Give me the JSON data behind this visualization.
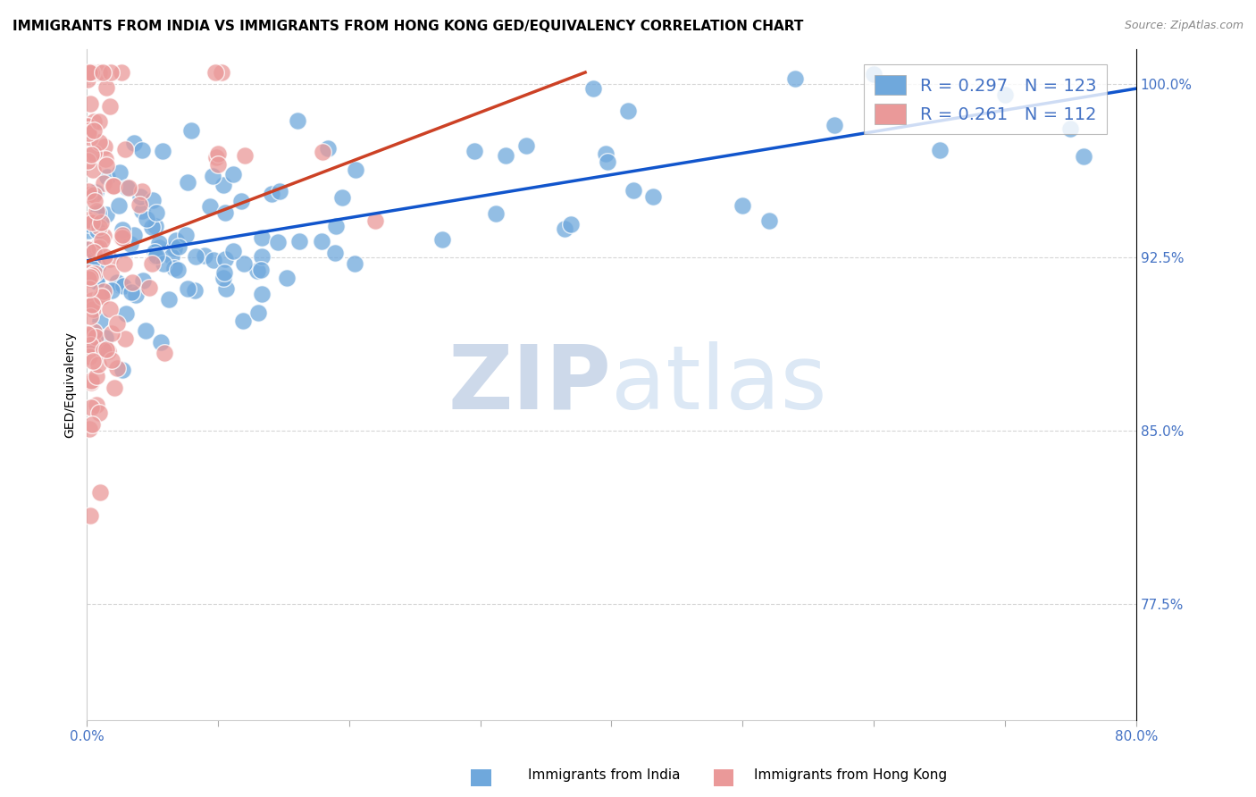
{
  "title": "IMMIGRANTS FROM INDIA VS IMMIGRANTS FROM HONG KONG GED/EQUIVALENCY CORRELATION CHART",
  "source": "Source: ZipAtlas.com",
  "ylabel": "GED/Equivalency",
  "xlim": [
    0.0,
    0.8
  ],
  "ylim": [
    0.725,
    1.015
  ],
  "xticks": [
    0.0,
    0.1,
    0.2,
    0.3,
    0.4,
    0.5,
    0.6,
    0.7,
    0.8
  ],
  "xticklabels": [
    "0.0%",
    "",
    "",
    "",
    "",
    "",
    "",
    "",
    "80.0%"
  ],
  "ytick_positions": [
    0.775,
    0.85,
    0.925,
    1.0
  ],
  "yticklabels": [
    "77.5%",
    "85.0%",
    "92.5%",
    "100.0%"
  ],
  "india_R": 0.297,
  "india_N": 123,
  "hk_R": 0.261,
  "hk_N": 112,
  "india_color": "#6fa8dc",
  "hk_color": "#ea9999",
  "india_line_color": "#1155cc",
  "hk_line_color": "#cc4125",
  "watermark_zip": "ZIP",
  "watermark_atlas": "atlas",
  "watermark_color": "#cdd9ea",
  "title_fontsize": 11,
  "tick_label_color": "#4472c4",
  "india_line_x0": 0.0,
  "india_line_y0": 0.9235,
  "india_line_x1": 0.8,
  "india_line_y1": 0.998,
  "hk_line_x0": 0.0,
  "hk_line_y0": 0.923,
  "hk_line_x1": 0.38,
  "hk_line_y1": 1.005
}
